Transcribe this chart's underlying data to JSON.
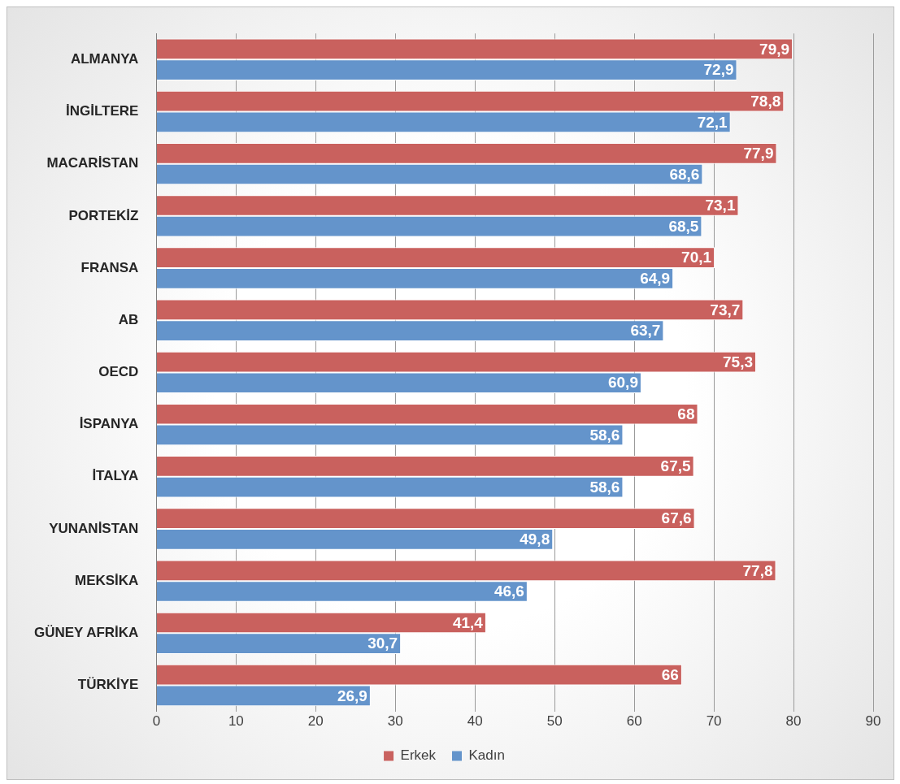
{
  "chart_data": {
    "type": "bar",
    "orientation": "horizontal",
    "categories": [
      "ALMANYA",
      "İNGİLTERE",
      "MACARİSTAN",
      "PORTEKİZ",
      "FRANSA",
      "AB",
      "OECD",
      "İSPANYA",
      "İTALYA",
      "YUNANİSTAN",
      "MEKSİKA",
      "GÜNEY AFRİKA",
      "TÜRKİYE"
    ],
    "series": [
      {
        "name": "Erkek",
        "color": "#c9615e",
        "values": [
          79.9,
          78.8,
          77.9,
          73.1,
          70.1,
          73.7,
          75.3,
          68,
          67.5,
          67.6,
          77.8,
          41.4,
          66
        ],
        "value_labels": [
          "79,9",
          "78,8",
          "77,9",
          "73,1",
          "70,1",
          "73,7",
          "75,3",
          "68",
          "67,5",
          "67,6",
          "77,8",
          "41,4",
          "66"
        ]
      },
      {
        "name": "Kadın",
        "color": "#6494cb",
        "values": [
          72.9,
          72.1,
          68.6,
          68.5,
          64.9,
          63.7,
          60.9,
          58.6,
          58.6,
          49.8,
          46.6,
          30.7,
          26.9
        ],
        "value_labels": [
          "72,9",
          "72,1",
          "68,6",
          "68,5",
          "64,9",
          "63,7",
          "60,9",
          "58,6",
          "58,6",
          "49,8",
          "46,6",
          "30,7",
          "26,9"
        ]
      }
    ],
    "xlim": [
      0,
      90
    ],
    "xticks": [
      0,
      10,
      20,
      30,
      40,
      50,
      60,
      70,
      80,
      90
    ],
    "grid": "x",
    "legend": "bottom"
  }
}
